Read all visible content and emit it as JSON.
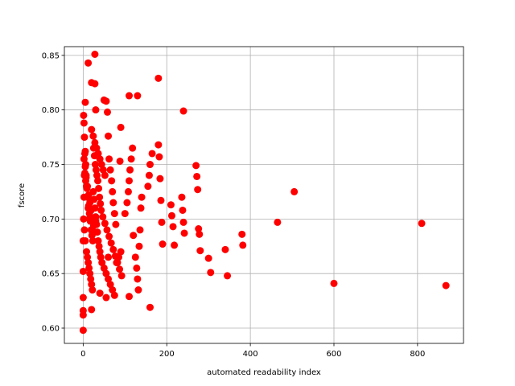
{
  "chart_data": {
    "type": "scatter",
    "title": "",
    "xlabel": "automated readability index",
    "ylabel": "fscore",
    "xlim": [
      -45,
      910
    ],
    "ylim": [
      0.586,
      0.858
    ],
    "xticks": [
      0,
      200,
      400,
      600,
      800
    ],
    "yticks": [
      0.6,
      0.65,
      0.7,
      0.75,
      0.8,
      0.85
    ],
    "xtick_labels": [
      "0",
      "200",
      "400",
      "600",
      "800"
    ],
    "ytick_labels": [
      "0.60",
      "0.65",
      "0.70",
      "0.75",
      "0.80",
      "0.85"
    ],
    "grid": true,
    "marker_color": "#ff0000",
    "series": [
      {
        "x": [
          0,
          0,
          0,
          0,
          0,
          0,
          1,
          2,
          3,
          4,
          1,
          2,
          3,
          5,
          6,
          7,
          8,
          10,
          12,
          15,
          3,
          5,
          8,
          10,
          12,
          14,
          16,
          18,
          20,
          22,
          4,
          6,
          9,
          11,
          13,
          15,
          17,
          19,
          21,
          23,
          2,
          5,
          7,
          10,
          13,
          16,
          19,
          22,
          25,
          28,
          24,
          26,
          28,
          30,
          32,
          34,
          36,
          38,
          40,
          42,
          25,
          27,
          29,
          31,
          33,
          35,
          37,
          39,
          41,
          43,
          20,
          24,
          28,
          32,
          36,
          40,
          44,
          48,
          52,
          30,
          45,
          50,
          55,
          60,
          65,
          70,
          75,
          80,
          85,
          90,
          47,
          52,
          57,
          62,
          67,
          72,
          77,
          82,
          87,
          92,
          55,
          58,
          60,
          62,
          65,
          68,
          70,
          72,
          75,
          78,
          100,
          105,
          108,
          110,
          112,
          115,
          118,
          120,
          125,
          128,
          130,
          132,
          134,
          136,
          138,
          140,
          155,
          158,
          160,
          165,
          180,
          182,
          184,
          186,
          188,
          190,
          210,
          212,
          215,
          218,
          236,
          238,
          240,
          242,
          270,
          272,
          274,
          276,
          278,
          280,
          300,
          305,
          340,
          345,
          380,
          382,
          465,
          505,
          600,
          810,
          868,
          12,
          20,
          28,
          50,
          110,
          130,
          180,
          240,
          28,
          40,
          55,
          90,
          110,
          160,
          20,
          30,
          60,
          88,
          5
        ],
        "y": [
          0.598,
          0.612,
          0.616,
          0.628,
          0.652,
          0.68,
          0.7,
          0.72,
          0.74,
          0.76,
          0.795,
          0.788,
          0.775,
          0.762,
          0.75,
          0.74,
          0.73,
          0.72,
          0.71,
          0.7,
          0.69,
          0.68,
          0.67,
          0.665,
          0.66,
          0.655,
          0.65,
          0.645,
          0.64,
          0.635,
          0.742,
          0.735,
          0.728,
          0.72,
          0.712,
          0.705,
          0.698,
          0.69,
          0.685,
          0.68,
          0.755,
          0.748,
          0.738,
          0.73,
          0.722,
          0.715,
          0.708,
          0.7,
          0.694,
          0.688,
          0.725,
          0.718,
          0.71,
          0.702,
          0.695,
          0.688,
          0.68,
          0.675,
          0.67,
          0.665,
          0.765,
          0.758,
          0.75,
          0.745,
          0.74,
          0.735,
          0.728,
          0.72,
          0.714,
          0.708,
          0.782,
          0.776,
          0.77,
          0.765,
          0.76,
          0.755,
          0.75,
          0.745,
          0.74,
          0.698,
          0.66,
          0.655,
          0.65,
          0.645,
          0.64,
          0.635,
          0.63,
          0.66,
          0.665,
          0.67,
          0.702,
          0.696,
          0.69,
          0.684,
          0.678,
          0.672,
          0.666,
          0.66,
          0.654,
          0.648,
          0.808,
          0.798,
          0.776,
          0.755,
          0.745,
          0.735,
          0.725,
          0.715,
          0.705,
          0.695,
          0.705,
          0.715,
          0.725,
          0.735,
          0.745,
          0.755,
          0.765,
          0.685,
          0.665,
          0.655,
          0.645,
          0.635,
          0.675,
          0.69,
          0.71,
          0.72,
          0.73,
          0.74,
          0.75,
          0.76,
          0.768,
          0.757,
          0.737,
          0.717,
          0.697,
          0.677,
          0.713,
          0.703,
          0.693,
          0.676,
          0.72,
          0.708,
          0.697,
          0.687,
          0.749,
          0.739,
          0.727,
          0.691,
          0.686,
          0.671,
          0.664,
          0.651,
          0.672,
          0.648,
          0.686,
          0.676,
          0.697,
          0.725,
          0.641,
          0.696,
          0.639,
          0.843,
          0.825,
          0.824,
          0.809,
          0.813,
          0.813,
          0.829,
          0.799,
          0.851,
          0.632,
          0.628,
          0.784,
          0.629,
          0.619,
          0.617,
          0.8,
          0.665,
          0.753,
          0.807
        ]
      }
    ]
  }
}
